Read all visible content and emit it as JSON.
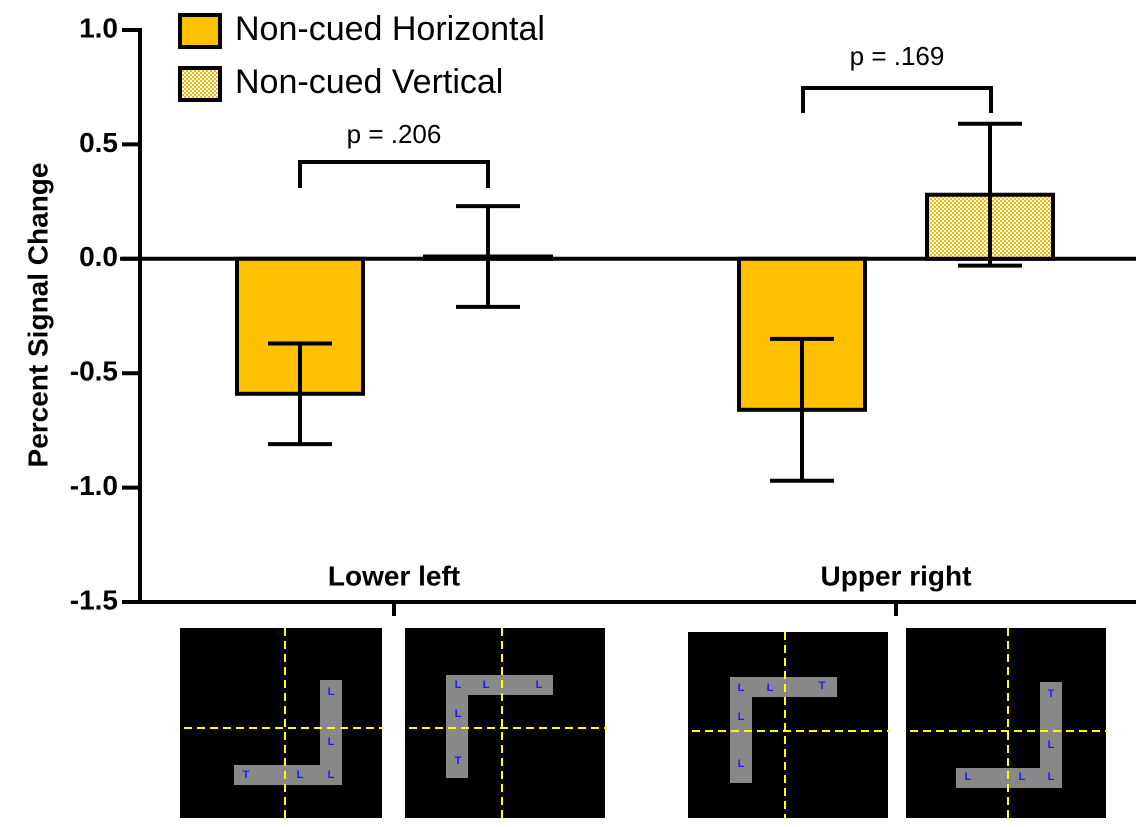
{
  "chart_data": {
    "type": "bar",
    "ylabel": "Percent Signal Change",
    "categories": [
      "Lower left",
      "Upper right"
    ],
    "series": [
      {
        "name": "Non-cued Horizontal",
        "color": "#ffc000",
        "values": [
          -0.59,
          -0.66
        ],
        "errors": [
          0.22,
          0.31
        ]
      },
      {
        "name": "Non-cued Vertical",
        "color": "#ffc000",
        "pattern": "checker",
        "values": [
          0.01,
          0.28
        ],
        "errors": [
          0.22,
          0.31
        ]
      }
    ],
    "ylim": [
      -1.5,
      1.0
    ],
    "yticks": [
      {
        "value": -1.5,
        "label": "-1.5"
      },
      {
        "value": -1.0,
        "label": "-1.0"
      },
      {
        "value": -0.5,
        "label": "-0.5"
      },
      {
        "value": 0,
        "label": "0.0"
      },
      {
        "value": 0.5,
        "label": "0.5"
      },
      {
        "value": 1.0,
        "label": "1.0"
      }
    ],
    "legend": "upper left",
    "annotations": [
      "p = .206",
      "p = .169"
    ]
  },
  "stimuli": [
    {
      "letters": [
        "L",
        "L",
        "T",
        "L",
        "L"
      ]
    },
    {
      "letters": [
        "L",
        "L",
        "L",
        "L",
        "T"
      ]
    },
    {
      "letters": [
        "L",
        "L",
        "T",
        "L",
        "L"
      ]
    },
    {
      "letters": [
        "T",
        "L",
        "L",
        "L",
        "L"
      ]
    }
  ]
}
